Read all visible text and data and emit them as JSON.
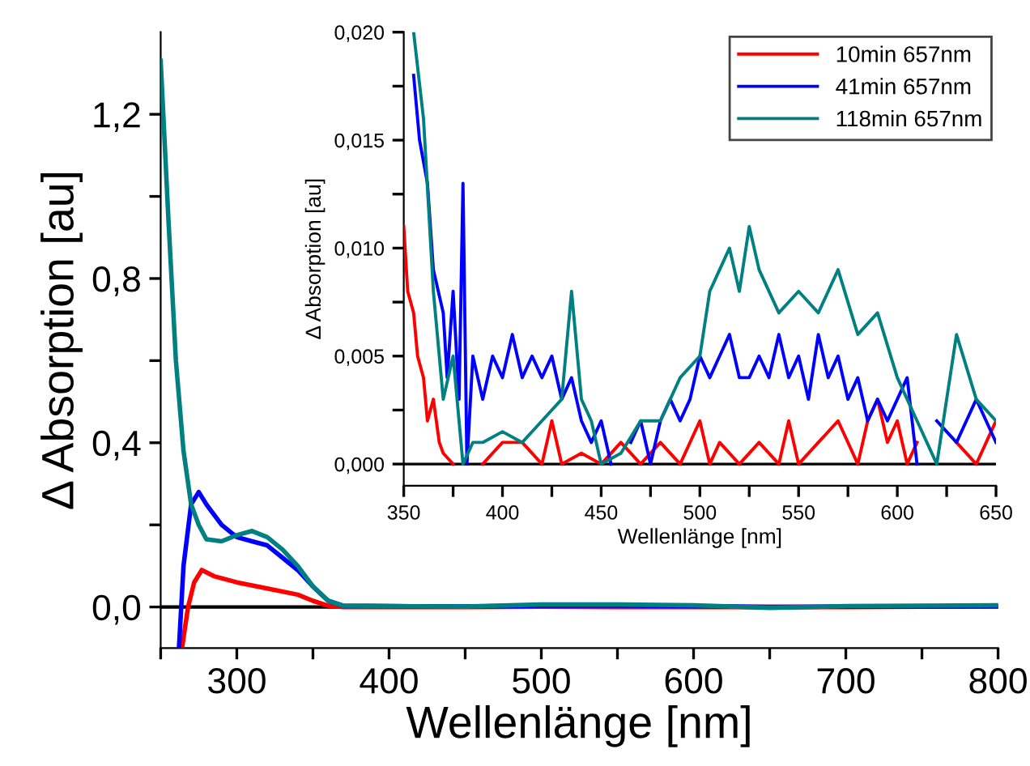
{
  "chart_data": [
    {
      "type": "line",
      "xlabel": "Wellenlänge [nm]",
      "ylabel": "Δ Absorption [au]",
      "xlim": [
        250,
        800
      ],
      "ylim": [
        -0.1,
        1.4
      ],
      "xticks": [
        {
          "value": 250,
          "label": null
        },
        300,
        {
          "value": 350,
          "label": null
        },
        400,
        {
          "value": 450,
          "label": null
        },
        500,
        {
          "value": 550,
          "label": null
        },
        600,
        {
          "value": 650,
          "label": null
        },
        700,
        {
          "value": 750,
          "label": null
        },
        800
      ],
      "yticks": [
        {
          "value": 0.0,
          "label": "0,0"
        },
        {
          "value": 0.2,
          "label": null
        },
        {
          "value": 0.4,
          "label": "0,4"
        },
        {
          "value": 0.6,
          "label": null
        },
        {
          "value": 0.8,
          "label": "0,8"
        },
        {
          "value": 1.0,
          "label": null
        },
        {
          "value": 1.2,
          "label": "1,2"
        }
      ],
      "grid": false,
      "legend": false,
      "ref_lines": [
        {
          "axis": "y",
          "value": 0,
          "color": "#000000"
        }
      ],
      "series": [
        {
          "color": "#ff0000",
          "x": [
            264,
            268,
            272,
            277,
            285,
            300,
            320,
            340,
            350,
            360,
            370,
            400,
            450,
            500,
            550,
            600,
            650,
            700,
            750,
            800
          ],
          "values": [
            -0.1,
            0.0,
            0.06,
            0.09,
            0.075,
            0.06,
            0.045,
            0.03,
            0.015,
            0.003,
            0.0,
            0.0,
            0.0,
            0.001,
            0.0,
            0.0,
            0.0,
            0.0,
            0.001,
            0.001
          ]
        },
        {
          "color": "#0000ff",
          "x": [
            262,
            265,
            270,
            275,
            280,
            290,
            300,
            310,
            320,
            330,
            340,
            350,
            360,
            370,
            400,
            450,
            500,
            550,
            600,
            650,
            700,
            750,
            800
          ],
          "values": [
            -0.1,
            0.1,
            0.25,
            0.28,
            0.25,
            0.2,
            0.17,
            0.16,
            0.15,
            0.12,
            0.09,
            0.05,
            0.015,
            0.003,
            0.002,
            0.001,
            0.003,
            0.003,
            0.002,
            0.0,
            0.001,
            0.001,
            0.002
          ]
        },
        {
          "color": "#008080",
          "x": [
            250,
            255,
            260,
            265,
            270,
            275,
            280,
            290,
            300,
            310,
            320,
            330,
            340,
            350,
            360,
            370,
            400,
            450,
            500,
            550,
            600,
            650,
            700,
            750,
            800
          ],
          "values": [
            1.33,
            0.95,
            0.6,
            0.38,
            0.25,
            0.2,
            0.165,
            0.16,
            0.175,
            0.185,
            0.17,
            0.14,
            0.1,
            0.05,
            0.015,
            0.003,
            0.002,
            0.001,
            0.006,
            0.006,
            0.004,
            -0.002,
            0.002,
            0.003,
            0.004
          ]
        }
      ]
    },
    {
      "type": "line",
      "xlabel": "Wellenlänge [nm]",
      "ylabel": "Δ Absorption [au]",
      "xlim": [
        350,
        650
      ],
      "ylim": [
        -0.001,
        0.02
      ],
      "xticks": [
        350,
        {
          "value": 375,
          "label": null
        },
        400,
        {
          "value": 425,
          "label": null
        },
        450,
        {
          "value": 475,
          "label": null
        },
        500,
        {
          "value": 525,
          "label": null
        },
        550,
        {
          "value": 575,
          "label": null
        },
        600,
        {
          "value": 625,
          "label": null
        },
        650
      ],
      "yticks": [
        {
          "value": 0.0,
          "label": "0,000"
        },
        {
          "value": 0.0025,
          "label": null
        },
        {
          "value": 0.005,
          "label": "0,005"
        },
        {
          "value": 0.0075,
          "label": null
        },
        {
          "value": 0.01,
          "label": "0,010"
        },
        {
          "value": 0.0125,
          "label": null
        },
        {
          "value": 0.015,
          "label": "0,015"
        },
        {
          "value": 0.0175,
          "label": null
        },
        {
          "value": 0.02,
          "label": "0,020"
        }
      ],
      "grid": false,
      "legend": "top right",
      "ref_lines": [
        {
          "axis": "y",
          "value": 0,
          "color": "#000000"
        }
      ],
      "series": [
        {
          "name": "10min 657nm",
          "color": "#ff0000",
          "x": [
            350,
            352,
            355,
            357,
            360,
            362,
            365,
            368,
            370,
            375,
            380,
            390,
            400,
            410,
            420,
            425,
            430,
            440,
            450,
            460,
            470,
            480,
            490,
            500,
            505,
            510,
            520,
            530,
            540,
            545,
            550,
            560,
            570,
            580,
            585,
            590,
            595,
            600,
            605,
            610,
            620,
            630,
            640,
            650
          ],
          "values": [
            0.011,
            0.008,
            0.007,
            0.005,
            0.004,
            0.002,
            0.003,
            0.001,
            0.0005,
            0.0,
            null,
            0.0,
            0.001,
            0.001,
            0.0,
            0.002,
            0.0,
            0.0005,
            0.0,
            0.001,
            0.0,
            0.001,
            0.0,
            0.002,
            0.0,
            0.001,
            0.0,
            0.001,
            0.0,
            0.002,
            0.0,
            0.001,
            0.002,
            0.0,
            0.002,
            0.003,
            0.001,
            0.002,
            0.0,
            0.001,
            null,
            0.001,
            0.0,
            0.002
          ]
        },
        {
          "name": "41min 657nm",
          "color": "#0000ff",
          "x": [
            355,
            358,
            362,
            365,
            370,
            372,
            375,
            378,
            380,
            382,
            385,
            390,
            395,
            400,
            405,
            410,
            415,
            420,
            425,
            430,
            435,
            440,
            445,
            450,
            455,
            460,
            465,
            470,
            475,
            480,
            485,
            490,
            495,
            500,
            505,
            510,
            515,
            520,
            525,
            530,
            535,
            540,
            545,
            550,
            555,
            560,
            565,
            570,
            575,
            580,
            585,
            590,
            595,
            600,
            605,
            610,
            612,
            620,
            630,
            640,
            650
          ],
          "values": [
            0.018,
            0.015,
            0.013,
            0.009,
            0.007,
            0.004,
            0.008,
            0.003,
            0.013,
            0.0,
            0.005,
            0.003,
            0.005,
            0.004,
            0.006,
            0.004,
            0.005,
            0.004,
            0.005,
            0.003,
            0.004,
            0.002,
            0.001,
            0.002,
            0.0,
            null,
            0.001,
            0.002,
            0.0,
            0.002,
            0.003,
            0.002,
            0.003,
            0.005,
            0.004,
            0.005,
            0.006,
            0.004,
            0.004,
            0.005,
            0.004,
            0.006,
            0.004,
            0.005,
            0.003,
            0.006,
            0.004,
            0.005,
            0.003,
            0.004,
            0.002,
            0.003,
            0.002,
            0.003,
            0.004,
            0.0,
            null,
            0.002,
            0.001,
            0.003,
            0.001
          ]
        },
        {
          "name": "118min 657nm",
          "color": "#008080",
          "x": [
            355,
            360,
            365,
            370,
            375,
            380,
            385,
            390,
            400,
            410,
            420,
            430,
            435,
            440,
            445,
            450,
            460,
            470,
            480,
            490,
            500,
            505,
            510,
            515,
            520,
            525,
            530,
            540,
            550,
            560,
            570,
            580,
            590,
            600,
            610,
            620,
            630,
            640,
            650
          ],
          "values": [
            0.02,
            0.016,
            0.008,
            0.003,
            0.005,
            0.0,
            0.001,
            0.001,
            0.0015,
            0.001,
            0.002,
            0.003,
            0.008,
            0.003,
            0.002,
            0.0,
            0.0005,
            0.002,
            0.002,
            0.004,
            0.005,
            0.008,
            0.009,
            0.01,
            0.008,
            0.011,
            0.009,
            0.007,
            0.008,
            0.007,
            0.009,
            0.006,
            0.007,
            0.004,
            0.002,
            0.0,
            0.006,
            0.003,
            0.002
          ]
        }
      ]
    }
  ]
}
